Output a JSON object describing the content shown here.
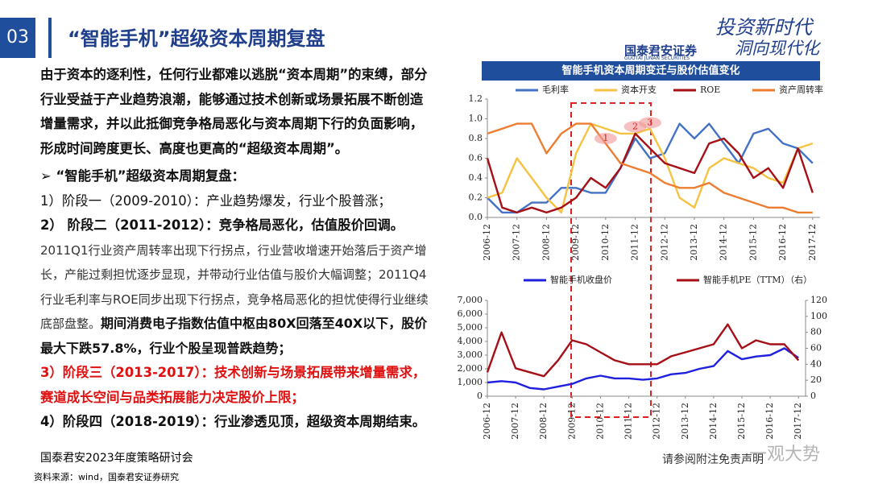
{
  "header": {
    "number": "03",
    "title": "“智能手机”超级资本周期复盘",
    "logo_cn": "国泰君安证券",
    "logo_en": "GUOTAI JUNAN SECURITIES",
    "slogan_1": "投资新时代",
    "slogan_2": "洞向现代化"
  },
  "body": {
    "p1": "由于资本的逐利性，任何行业都难以逃脱“资本周期”的束缚，部分行业受益于产业趋势浪潮，能够通过技术创新或场景拓展不断创造增量需求，并以此抵御竞争格局恶化与资本周期下行的负面影响，形成时间跨度更长、高度也更高的“超级资本周期”。",
    "p2": "➢ “智能手机”超级资本周期复盘：",
    "p3": "1）阶段一（2009-2010）：产业趋势爆发，行业个股普涨；",
    "p4": "2） 阶段二（2011-2012）：竞争格局恶化，估值股价回调。",
    "p5_normal": "2011Q1行业资产周转率出现下行拐点，行业营收增速开始落后于资产增长，产能过剩担忧逐步显现，并带动行业估值与股价大幅调整；2011Q4行业毛利率与ROE同步出现下行拐点，竞争格局恶化的担忧使得行业继续底部盘整。",
    "p5_bold": "期间消费电子指数估值中枢由80X回落至40X以下，股价最大下跌57.8%，行业个股呈现普跌趋势；",
    "p6": "3）阶段三（2013-2017）：技术创新与场景拓展带来增量需求，赛道成长空间与品类拓展能力决定股价上限；",
    "p7": "4）阶段四（2018-2019）：行业渗透见顶，超级资本周期结束。"
  },
  "footer": {
    "event": "国泰君安2023年度策略研讨会",
    "source": "资料来源：wind，国泰君安证券研究",
    "disclaimer": "请参阅附注免责声明",
    "watermark": "一观大势"
  },
  "chart_data": [
    {
      "type": "line",
      "title": "智能手机资本周期变迁与股价估值变化",
      "x": [
        "2006-12",
        "2007-06",
        "2007-12",
        "2008-06",
        "2008-12",
        "2009-06",
        "2009-12",
        "2010-06",
        "2010-12",
        "2011-06",
        "2011-12",
        "2012-06",
        "2012-12",
        "2013-06",
        "2013-12",
        "2014-06",
        "2014-12",
        "2015-06",
        "2015-12",
        "2016-06",
        "2016-12",
        "2017-06",
        "2017-12"
      ],
      "xticks": [
        "2006-12",
        "2007-12",
        "2008-12",
        "2009-12",
        "2010-12",
        "2011-12",
        "2012-12",
        "2013-12",
        "2014-12",
        "2015-12",
        "2016-12",
        "2017-12"
      ],
      "ylim": [
        0,
        1.2
      ],
      "yticks": [
        {
          "value": 0,
          "label": "0.0"
        },
        0.2,
        0.4,
        0.6,
        0.8,
        {
          "value": 1,
          "label": "1.0"
        },
        1.2
      ],
      "annotations": [
        {
          "text": "1",
          "x": "2010-12",
          "y": 0.8
        },
        {
          "text": "2",
          "x": "2011-12",
          "y": 0.92
        },
        {
          "text": "3",
          "x": "2012-06",
          "y": 0.96
        }
      ],
      "series": [
        {
          "name": "毛利率",
          "color": "#4472c4",
          "values": [
            0.2,
            0.05,
            0.05,
            0.15,
            0.15,
            0.3,
            0.3,
            0.25,
            0.25,
            0.5,
            0.8,
            0.6,
            0.65,
            0.95,
            0.8,
            0.95,
            0.75,
            0.55,
            0.85,
            0.9,
            0.75,
            0.7,
            0.55
          ]
        },
        {
          "name": "资本开支",
          "color": "#f5c242",
          "values": [
            0.2,
            0.25,
            0.6,
            0.4,
            0.2,
            0.05,
            0.65,
            0.95,
            0.9,
            0.85,
            0.85,
            0.9,
            0.6,
            0.2,
            0.1,
            0.5,
            0.6,
            0.55,
            0.5,
            0.4,
            0.35,
            0.7,
            0.75
          ]
        },
        {
          "name": "ROE",
          "color": "#a50f15",
          "values": [
            0.6,
            0.1,
            0.05,
            0.1,
            0.05,
            0.1,
            0.2,
            0.4,
            0.3,
            0.5,
            0.85,
            0.7,
            0.55,
            0.5,
            0.45,
            0.75,
            0.8,
            0.65,
            0.4,
            0.5,
            0.3,
            0.7,
            0.25
          ]
        },
        {
          "name": "资产周转率",
          "color": "#ed7d31",
          "values": [
            0.85,
            0.9,
            0.95,
            0.95,
            0.65,
            0.85,
            0.95,
            0.95,
            0.75,
            0.55,
            0.5,
            0.45,
            0.35,
            0.3,
            0.3,
            0.35,
            0.25,
            0.2,
            0.15,
            0.1,
            0.1,
            0.05,
            0.05
          ]
        }
      ]
    },
    {
      "type": "line",
      "x": [
        "2006-12",
        "2007-06",
        "2007-12",
        "2008-06",
        "2008-12",
        "2009-06",
        "2009-12",
        "2010-06",
        "2010-12",
        "2011-06",
        "2011-12",
        "2012-06",
        "2012-12",
        "2013-06",
        "2013-12",
        "2014-06",
        "2014-12",
        "2015-06",
        "2015-12",
        "2016-06",
        "2016-12",
        "2017-06",
        "2017-12"
      ],
      "xticks": [
        "2006-12",
        "2007-12",
        "2008-12",
        "2009-12",
        "2010-12",
        "2011-12",
        "2012-12",
        "2013-12",
        "2014-12",
        "2015-12",
        "2016-12",
        "2017-12"
      ],
      "ylim": [
        0,
        7000
      ],
      "yticks": [
        0,
        {
          "value": 1000,
          "label": "1,000"
        },
        {
          "value": 2000,
          "label": "2,000"
        },
        {
          "value": 3000,
          "label": "3,000"
        },
        {
          "value": 4000,
          "label": "4,000"
        },
        {
          "value": 5000,
          "label": "5,000"
        },
        {
          "value": 6000,
          "label": "6,000"
        },
        {
          "value": 7000,
          "label": "7,000"
        }
      ],
      "y2lim": [
        0,
        120
      ],
      "y2ticks": [
        0,
        20,
        40,
        60,
        80,
        100,
        120
      ],
      "series": [
        {
          "name": "智能手机收盘价",
          "color": "#1f1fe0",
          "values": [
            1000,
            1100,
            1000,
            600,
            500,
            700,
            900,
            1300,
            1500,
            1300,
            1300,
            1200,
            1300,
            1600,
            1700,
            2000,
            2200,
            3300,
            2700,
            2900,
            3000,
            3500,
            2800
          ]
        },
        {
          "name": "智能手机PE（TTM）（右）",
          "color": "#a50f15",
          "axis": "y2",
          "values": [
            30,
            80,
            35,
            30,
            25,
            45,
            70,
            65,
            55,
            45,
            40,
            40,
            40,
            50,
            55,
            60,
            65,
            90,
            60,
            70,
            65,
            65,
            45
          ]
        }
      ]
    }
  ]
}
